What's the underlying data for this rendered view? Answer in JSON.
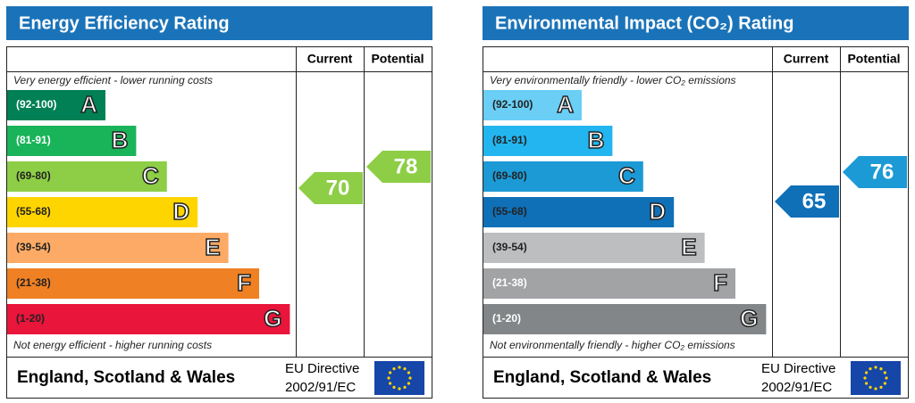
{
  "panels": [
    {
      "title": "Energy Efficiency Rating",
      "columns": [
        "Current",
        "Potential"
      ],
      "top_note": "Very energy efficient - lower running costs",
      "bottom_note": "Not energy efficient - higher running costs",
      "bands": [
        {
          "range": "(92-100)",
          "letter": "A",
          "color": "#008054",
          "text_color": "#ffffff"
        },
        {
          "range": "(81-91)",
          "letter": "B",
          "color": "#19b459",
          "text_color": "#ffffff"
        },
        {
          "range": "(69-80)",
          "letter": "C",
          "color": "#8dce46",
          "text_color": "#222222"
        },
        {
          "range": "(55-68)",
          "letter": "D",
          "color": "#ffd500",
          "text_color": "#222222"
        },
        {
          "range": "(39-54)",
          "letter": "E",
          "color": "#fcaa65",
          "text_color": "#222222"
        },
        {
          "range": "(21-38)",
          "letter": "F",
          "color": "#ef8023",
          "text_color": "#222222"
        },
        {
          "range": "(1-20)",
          "letter": "G",
          "color": "#e9153b",
          "text_color": "#222222"
        }
      ],
      "current": 70,
      "current_color": "#8dce46",
      "potential": 78,
      "potential_color": "#8dce46",
      "footer": {
        "region": "England, Scotland & Wales",
        "directive": "EU Directive",
        "code": "2002/91/EC"
      }
    },
    {
      "title": "Environmental Impact (CO₂) Rating",
      "columns": [
        "Current",
        "Potential"
      ],
      "top_note": "Very environmentally friendly - lower CO₂ emissions",
      "bottom_note": "Not environmentally friendly - higher CO₂ emissions",
      "bands": [
        {
          "range": "(92-100)",
          "letter": "A",
          "color": "#6acef5",
          "text_color": "#222222"
        },
        {
          "range": "(81-91)",
          "letter": "B",
          "color": "#22b5f0",
          "text_color": "#222222"
        },
        {
          "range": "(69-80)",
          "letter": "C",
          "color": "#1b9ad6",
          "text_color": "#222222"
        },
        {
          "range": "(55-68)",
          "letter": "D",
          "color": "#0f70b8",
          "text_color": "#222222"
        },
        {
          "range": "(39-54)",
          "letter": "E",
          "color": "#bcbec0",
          "text_color": "#222222"
        },
        {
          "range": "(21-38)",
          "letter": "F",
          "color": "#a1a3a5",
          "text_color": "#ffffff"
        },
        {
          "range": "(1-20)",
          "letter": "G",
          "color": "#838688",
          "text_color": "#ffffff"
        }
      ],
      "current": 65,
      "current_color": "#0f70b8",
      "potential": 76,
      "potential_color": "#1b9ad6",
      "footer": {
        "region": "England, Scotland & Wales",
        "directive": "EU Directive",
        "code": "2002/91/EC"
      }
    }
  ]
}
